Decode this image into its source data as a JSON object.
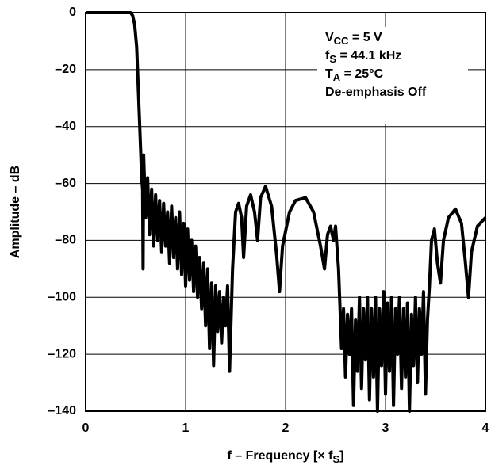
{
  "chart_data": {
    "type": "line",
    "x_label": {
      "main": "f – Frequency [× f",
      "sub": "S",
      "tail": "]"
    },
    "y_label": "Amplitude – dB",
    "annotation": [
      {
        "main": "V",
        "sub": "CC",
        "tail": " = 5 V"
      },
      {
        "main": "f",
        "sub": "S",
        "tail": " = 44.1 kHz"
      },
      {
        "main": "T",
        "sub": "A",
        "tail": " = 25°C"
      },
      {
        "main": "De-emphasis Off"
      }
    ],
    "xlim": [
      0,
      4
    ],
    "xticks": [
      0,
      1,
      2,
      3,
      4
    ],
    "ylim": [
      -140,
      0
    ],
    "yticks": [
      {
        "value": -140,
        "label": "–140"
      },
      {
        "value": -120,
        "label": "–120"
      },
      {
        "value": -100,
        "label": "–100"
      },
      {
        "value": -80,
        "label": "–80"
      },
      {
        "value": -60,
        "label": "–60"
      },
      {
        "value": -40,
        "label": "–40"
      },
      {
        "value": -20,
        "label": "–20"
      },
      0
    ],
    "grid": true,
    "series": [
      {
        "color": "#000000",
        "x": [
          0,
          0.45,
          0.47,
          0.49,
          0.51,
          0.53,
          0.55,
          0.56,
          0.57,
          0.575,
          0.58,
          0.6,
          0.62,
          0.64,
          0.66,
          0.68,
          0.7,
          0.72,
          0.74,
          0.76,
          0.78,
          0.8,
          0.82,
          0.84,
          0.86,
          0.88,
          0.9,
          0.92,
          0.94,
          0.96,
          0.98,
          1.0,
          1.02,
          1.04,
          1.06,
          1.08,
          1.1,
          1.12,
          1.14,
          1.16,
          1.18,
          1.2,
          1.22,
          1.24,
          1.26,
          1.28,
          1.3,
          1.32,
          1.34,
          1.36,
          1.38,
          1.4,
          1.42,
          1.44,
          1.47,
          1.5,
          1.53,
          1.56,
          1.58,
          1.61,
          1.65,
          1.69,
          1.72,
          1.75,
          1.8,
          1.86,
          1.91,
          1.94,
          1.97,
          2.04,
          2.1,
          2.2,
          2.28,
          2.35,
          2.39,
          2.42,
          2.45,
          2.48,
          2.5,
          2.53,
          2.56,
          2.58,
          2.6,
          2.62,
          2.64,
          2.66,
          2.68,
          2.7,
          2.72,
          2.74,
          2.76,
          2.78,
          2.8,
          2.82,
          2.84,
          2.86,
          2.88,
          2.9,
          2.92,
          2.94,
          2.96,
          2.98,
          3.0,
          3.02,
          3.04,
          3.06,
          3.08,
          3.1,
          3.12,
          3.14,
          3.16,
          3.18,
          3.2,
          3.22,
          3.24,
          3.26,
          3.28,
          3.3,
          3.32,
          3.34,
          3.36,
          3.38,
          3.4,
          3.42,
          3.44,
          3.46,
          3.49,
          3.52,
          3.55,
          3.58,
          3.63,
          3.7,
          3.76,
          3.8,
          3.83,
          3.86,
          3.92,
          4.0
        ],
        "values": [
          0,
          0,
          -1,
          -4,
          -12,
          -30,
          -48,
          -58,
          -62,
          -90,
          -50,
          -72,
          -58,
          -78,
          -62,
          -82,
          -64,
          -80,
          -66,
          -84,
          -67,
          -82,
          -70,
          -88,
          -68,
          -86,
          -72,
          -90,
          -70,
          -92,
          -74,
          -96,
          -76,
          -94,
          -80,
          -98,
          -82,
          -100,
          -86,
          -104,
          -88,
          -110,
          -90,
          -118,
          -95,
          -124,
          -96,
          -112,
          -98,
          -116,
          -100,
          -110,
          -96,
          -126,
          -90,
          -70,
          -67,
          -72,
          -86,
          -68,
          -64,
          -70,
          -80,
          -65,
          -61,
          -68,
          -85,
          -98,
          -82,
          -70,
          -66,
          -65,
          -70,
          -82,
          -90,
          -78,
          -75,
          -80,
          -75,
          -90,
          -118,
          -104,
          -128,
          -106,
          -120,
          -104,
          -138,
          -108,
          -126,
          -100,
          -132,
          -104,
          -122,
          -100,
          -136,
          -104,
          -128,
          -100,
          -140,
          -104,
          -124,
          -98,
          -134,
          -102,
          -126,
          -100,
          -138,
          -104,
          -120,
          -100,
          -132,
          -104,
          -128,
          -102,
          -140,
          -106,
          -124,
          -100,
          -130,
          -104,
          -120,
          -98,
          -134,
          -108,
          -96,
          -80,
          -76,
          -88,
          -95,
          -80,
          -72,
          -69,
          -74,
          -88,
          -100,
          -84,
          -75,
          -72
        ]
      }
    ]
  }
}
